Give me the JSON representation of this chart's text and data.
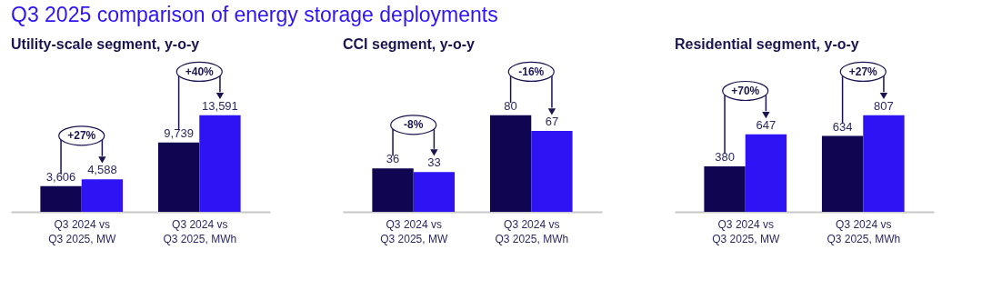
{
  "chart_data": [
    {
      "type": "bar",
      "title": "Q3 2025 comparison of energy storage deployments",
      "subtitle": "Utility-scale segment, y-o-y",
      "categories": [
        "Q3 2024 vs Q3 2025, MW",
        "Q3 2024 vs Q3 2025, MWh"
      ],
      "series": [
        {
          "color": "#0f0550",
          "values": [
            3606,
            9739
          ],
          "value_labels": [
            "3,606",
            "9,739"
          ]
        },
        {
          "color": "#2e14f5",
          "values": [
            4588,
            13591
          ],
          "value_labels": [
            "4,588",
            "13,591"
          ]
        }
      ],
      "annotations": [
        "+27%",
        "+40%"
      ]
    },
    {
      "type": "bar",
      "title": "CCI segment, y-o-y",
      "categories": [
        "Q3 2024 vs Q3 2025, MW",
        "Q3 2024 vs Q3 2025, MWh"
      ],
      "series": [
        {
          "color": "#0f0550",
          "values": [
            36,
            80
          ],
          "value_labels": [
            "36",
            "80"
          ]
        },
        {
          "color": "#2e14f5",
          "values": [
            33,
            67
          ],
          "value_labels": [
            "33",
            "67"
          ]
        }
      ],
      "annotations": [
        "-8%",
        "-16%"
      ]
    },
    {
      "type": "bar",
      "title": "Residential segment, y-o-y",
      "categories": [
        "Q3 2024 vs Q3 2025, MW",
        "Q3 2024 vs Q3 2025, MWh"
      ],
      "series": [
        {
          "color": "#0f0550",
          "values": [
            380,
            634
          ],
          "value_labels": [
            "380",
            "634"
          ]
        },
        {
          "color": "#2e14f5",
          "values": [
            647,
            807
          ],
          "value_labels": [
            "647",
            "807"
          ]
        }
      ],
      "annotations": [
        "+70%",
        "+27%"
      ]
    }
  ]
}
